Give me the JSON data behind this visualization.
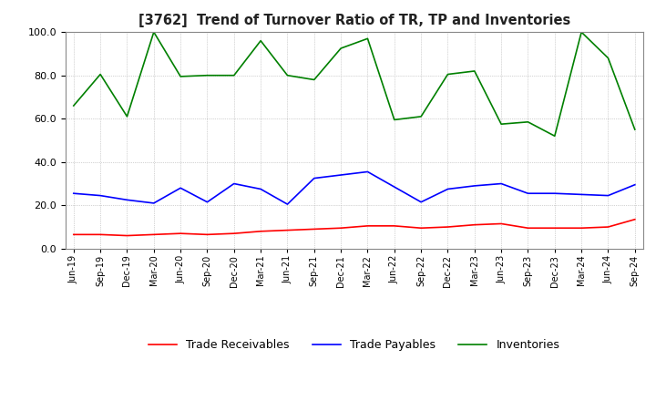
{
  "title": "[3762]  Trend of Turnover Ratio of TR, TP and Inventories",
  "ylim": [
    0,
    100
  ],
  "yticks": [
    0.0,
    20.0,
    40.0,
    60.0,
    80.0,
    100.0
  ],
  "background_color": "#ffffff",
  "grid_color": "#aaaaaa",
  "legend": [
    "Trade Receivables",
    "Trade Payables",
    "Inventories"
  ],
  "legend_colors": [
    "#ff0000",
    "#0000ff",
    "#008000"
  ],
  "x_labels": [
    "Jun-19",
    "Sep-19",
    "Dec-19",
    "Mar-20",
    "Jun-20",
    "Sep-20",
    "Dec-20",
    "Mar-21",
    "Jun-21",
    "Sep-21",
    "Dec-21",
    "Mar-22",
    "Jun-22",
    "Sep-22",
    "Dec-22",
    "Mar-23",
    "Jun-23",
    "Sep-23",
    "Dec-23",
    "Mar-24",
    "Jun-24",
    "Sep-24"
  ],
  "trade_receivables": [
    6.5,
    6.5,
    6.0,
    6.5,
    7.0,
    6.5,
    7.0,
    8.0,
    8.5,
    9.0,
    9.5,
    10.5,
    10.5,
    9.5,
    10.0,
    11.0,
    11.5,
    9.5,
    9.5,
    9.5,
    10.0,
    13.5
  ],
  "trade_payables": [
    25.5,
    24.5,
    22.5,
    21.0,
    28.0,
    21.5,
    30.0,
    27.5,
    20.5,
    32.5,
    34.0,
    35.5,
    28.5,
    21.5,
    27.5,
    29.0,
    30.0,
    25.5,
    25.5,
    25.0,
    24.5,
    29.5
  ],
  "inventories": [
    66.0,
    80.5,
    61.0,
    100.0,
    79.5,
    80.0,
    80.0,
    96.0,
    80.0,
    78.0,
    92.5,
    97.0,
    59.5,
    61.0,
    80.5,
    82.0,
    57.5,
    58.5,
    52.0,
    100.0,
    88.0,
    55.0
  ]
}
